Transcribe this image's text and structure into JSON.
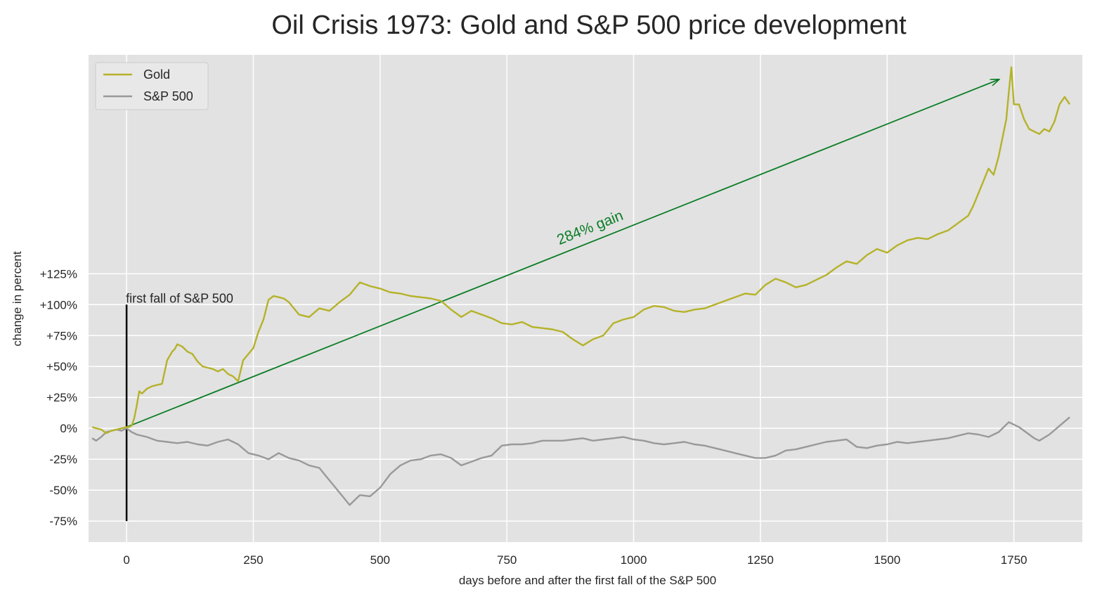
{
  "chart_data": {
    "type": "line",
    "title": "Oil Crisis 1973: Gold and S&P 500 price development",
    "xlabel": "days before and after the first fall of the S&P 500",
    "ylabel": "change in percent",
    "xlim": [
      -75,
      1885
    ],
    "ylim": [
      -92,
      302
    ],
    "x_ticks": [
      0,
      250,
      500,
      750,
      1000,
      1250,
      1500,
      1750
    ],
    "x_tick_labels": [
      "0",
      "250",
      "500",
      "750",
      "1000",
      "1250",
      "1500",
      "1750"
    ],
    "y_ticks": [
      -75,
      -50,
      -25,
      0,
      25,
      50,
      75,
      100,
      125
    ],
    "y_tick_labels": [
      "-75%",
      "-50%",
      "-25%",
      "0%",
      "+25%",
      "+50%",
      "+75%",
      "+100%",
      "+125%"
    ],
    "grid": true,
    "legend_position": "top-left",
    "colors": {
      "gold": "#b5b22a",
      "sp500": "#999999",
      "arrow": "#0a7d25",
      "marker": "#000000",
      "plot_bg": "#e2e2e2"
    },
    "series": [
      {
        "name": "Gold",
        "x": [
          -68,
          -60,
          -50,
          -40,
          -30,
          -20,
          -10,
          0,
          5,
          10,
          15,
          20,
          25,
          30,
          40,
          50,
          60,
          70,
          80,
          90,
          95,
          100,
          110,
          120,
          130,
          140,
          150,
          160,
          170,
          180,
          190,
          200,
          210,
          220,
          230,
          240,
          250,
          260,
          270,
          280,
          290,
          300,
          310,
          320,
          340,
          360,
          380,
          400,
          420,
          440,
          460,
          480,
          500,
          520,
          540,
          560,
          580,
          600,
          620,
          640,
          660,
          680,
          700,
          720,
          740,
          760,
          780,
          800,
          820,
          840,
          860,
          880,
          900,
          920,
          940,
          960,
          980,
          1000,
          1020,
          1040,
          1060,
          1080,
          1100,
          1120,
          1140,
          1160,
          1180,
          1200,
          1220,
          1240,
          1260,
          1280,
          1300,
          1320,
          1340,
          1360,
          1380,
          1400,
          1420,
          1440,
          1460,
          1480,
          1500,
          1520,
          1540,
          1560,
          1580,
          1600,
          1620,
          1640,
          1660,
          1670,
          1680,
          1690,
          1700,
          1710,
          1720,
          1730,
          1735,
          1740,
          1745,
          1750,
          1760,
          1770,
          1780,
          1790,
          1800,
          1810,
          1820,
          1830,
          1840,
          1850,
          1860
        ],
        "y": [
          1,
          0,
          -1,
          -4,
          -2,
          -1,
          0,
          1,
          1,
          2,
          8,
          18,
          30,
          28,
          32,
          34,
          35,
          36,
          55,
          62,
          64,
          68,
          66,
          62,
          60,
          54,
          50,
          49,
          48,
          46,
          48,
          44,
          42,
          38,
          55,
          60,
          65,
          78,
          88,
          104,
          107,
          106,
          105,
          102,
          92,
          90,
          97,
          95,
          102,
          108,
          118,
          115,
          113,
          110,
          109,
          107,
          106,
          105,
          103,
          96,
          90,
          95,
          92,
          89,
          85,
          84,
          86,
          82,
          81,
          80,
          78,
          72,
          67,
          72,
          75,
          85,
          88,
          90,
          96,
          99,
          98,
          95,
          94,
          96,
          97,
          100,
          103,
          106,
          109,
          108,
          116,
          121,
          118,
          114,
          116,
          120,
          124,
          130,
          135,
          133,
          140,
          145,
          142,
          148,
          152,
          154,
          153,
          157,
          160,
          166,
          172,
          180,
          190,
          200,
          210,
          205,
          220,
          240,
          250,
          272,
          292,
          262,
          262,
          250,
          242,
          240,
          238,
          242,
          240,
          248,
          262,
          268,
          262
        ]
      },
      {
        "name": "S&P 500",
        "x": [
          -68,
          -60,
          -50,
          -40,
          -30,
          -20,
          -10,
          0,
          10,
          20,
          40,
          60,
          80,
          100,
          120,
          140,
          160,
          180,
          200,
          220,
          240,
          260,
          280,
          300,
          320,
          340,
          360,
          380,
          400,
          420,
          440,
          460,
          480,
          500,
          520,
          540,
          560,
          580,
          600,
          620,
          640,
          660,
          680,
          700,
          720,
          740,
          760,
          780,
          800,
          820,
          840,
          860,
          880,
          900,
          920,
          940,
          960,
          980,
          1000,
          1020,
          1040,
          1060,
          1080,
          1100,
          1120,
          1140,
          1160,
          1180,
          1200,
          1220,
          1240,
          1260,
          1280,
          1300,
          1320,
          1340,
          1360,
          1380,
          1400,
          1420,
          1440,
          1460,
          1480,
          1500,
          1520,
          1540,
          1560,
          1580,
          1600,
          1620,
          1640,
          1660,
          1680,
          1700,
          1720,
          1740,
          1760,
          1780,
          1790,
          1800,
          1820,
          1840,
          1860
        ],
        "y": [
          -8,
          -10,
          -7,
          -3,
          -2,
          -1,
          -2,
          0,
          -3,
          -5,
          -7,
          -10,
          -11,
          -12,
          -11,
          -13,
          -14,
          -11,
          -9,
          -13,
          -20,
          -22,
          -25,
          -20,
          -24,
          -26,
          -30,
          -32,
          -42,
          -52,
          -62,
          -54,
          -55,
          -48,
          -37,
          -30,
          -26,
          -25,
          -22,
          -21,
          -24,
          -30,
          -27,
          -24,
          -22,
          -14,
          -13,
          -13,
          -12,
          -10,
          -10,
          -10,
          -9,
          -8,
          -10,
          -9,
          -8,
          -7,
          -9,
          -10,
          -12,
          -13,
          -12,
          -11,
          -13,
          -14,
          -16,
          -18,
          -20,
          -22,
          -24,
          -24,
          -22,
          -18,
          -17,
          -15,
          -13,
          -11,
          -10,
          -9,
          -15,
          -16,
          -14,
          -13,
          -11,
          -12,
          -11,
          -10,
          -9,
          -8,
          -6,
          -4,
          -5,
          -7,
          -3,
          5,
          1,
          -5,
          -8,
          -10,
          -5,
          2,
          9
        ]
      }
    ],
    "vertical_marker": {
      "x": 0,
      "y_from": -75,
      "y_to": 100,
      "label": "first fall of S&P 500"
    },
    "annotation_arrow": {
      "x_from": 0,
      "y_from": 1,
      "x_to": 1720,
      "y_to": 282,
      "label": "284% gain"
    }
  }
}
